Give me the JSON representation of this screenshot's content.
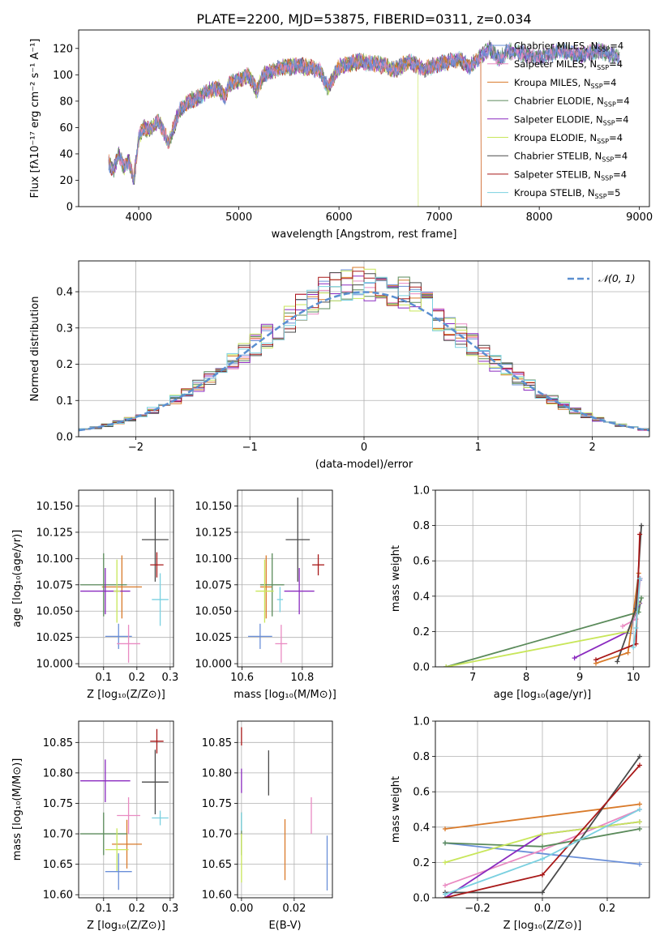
{
  "title": "PLATE=2200, MJD=53875, FIBERID=0311, z=0.034",
  "colors": {
    "Chabrier MILES": "#6a8fd8",
    "Salpeter MILES": "#e98ac2",
    "Kroupa MILES": "#d97a2a",
    "Chabrier ELODIE": "#5a8a5a",
    "Salpeter ELODIE": "#8a2abf",
    "Kroupa ELODIE": "#c8e65a",
    "Chabrier STELIB": "#4a4a4a",
    "Salpeter STELIB": "#a81818",
    "Kroupa STELIB": "#7ad0e0",
    "normal": "#5b8fd0"
  },
  "legend_order": [
    "Chabrier MILES",
    "Salpeter MILES",
    "Kroupa MILES",
    "Chabrier ELODIE",
    "Salpeter ELODIE",
    "Kroupa ELODIE",
    "Chabrier STELIB",
    "Salpeter STELIB",
    "Kroupa STELIB"
  ],
  "chart_data": [
    {
      "type": "line",
      "id": "spectrum",
      "title": "PLATE=2200, MJD=53875, FIBERID=0311, z=0.034",
      "xlabel": "wavelength [Angstrom, rest frame]",
      "ylabel": "Flux [fλ10⁻¹⁷ erg cm⁻² s⁻¹ A⁻¹]",
      "xlim": [
        3400,
        9100
      ],
      "ylim": [
        0,
        134
      ],
      "xticks": [
        4000,
        5000,
        6000,
        7000,
        8000,
        9000
      ],
      "yticks": [
        0,
        20,
        40,
        60,
        80,
        100,
        120
      ],
      "grid": false,
      "legend_position": "upper right",
      "legend": [
        {
          "base": "Chabrier MILES",
          "n": 4
        },
        {
          "base": "Salpeter MILES",
          "n": 4
        },
        {
          "base": "Kroupa MILES",
          "n": 4
        },
        {
          "base": "Chabrier ELODIE",
          "n": 4
        },
        {
          "base": "Salpeter ELODIE",
          "n": 4
        },
        {
          "base": "Kroupa ELODIE",
          "n": 4
        },
        {
          "base": "Chabrier STELIB",
          "n": 4
        },
        {
          "base": "Salpeter STELIB",
          "n": 4
        },
        {
          "base": "Kroupa STELIB",
          "n": 5
        }
      ],
      "legend_sub_prefix": "N",
      "legend_sub": "SSP",
      "spectrum_anchor_points": [
        [
          3700,
          33
        ],
        [
          3750,
          28
        ],
        [
          3800,
          40
        ],
        [
          3850,
          30
        ],
        [
          3900,
          35
        ],
        [
          3950,
          20
        ],
        [
          4000,
          52
        ],
        [
          4050,
          60
        ],
        [
          4100,
          58
        ],
        [
          4200,
          65
        ],
        [
          4300,
          48
        ],
        [
          4400,
          72
        ],
        [
          4500,
          80
        ],
        [
          4600,
          83
        ],
        [
          4700,
          88
        ],
        [
          4800,
          90
        ],
        [
          4860,
          82
        ],
        [
          4900,
          93
        ],
        [
          5000,
          96
        ],
        [
          5100,
          100
        ],
        [
          5175,
          88
        ],
        [
          5250,
          100
        ],
        [
          5400,
          105
        ],
        [
          5600,
          107
        ],
        [
          5800,
          104
        ],
        [
          5890,
          90
        ],
        [
          6000,
          106
        ],
        [
          6200,
          110
        ],
        [
          6400,
          108
        ],
        [
          6563,
          104
        ],
        [
          6700,
          110
        ],
        [
          6850,
          104
        ],
        [
          7000,
          108
        ],
        [
          7200,
          112
        ],
        [
          7300,
          106
        ],
        [
          7500,
          120
        ],
        [
          7600,
          112
        ],
        [
          7700,
          118
        ],
        [
          8000,
          113
        ],
        [
          8200,
          118
        ],
        [
          8400,
          115
        ],
        [
          8600,
          118
        ],
        [
          8800,
          113
        ]
      ],
      "dropouts": [
        {
          "series": "Kroupa ELODIE",
          "from": 6790,
          "to": 9000
        },
        {
          "series": "Salpeter STELIB",
          "from": 7420,
          "to": 9000
        },
        {
          "series": "Kroupa MILES",
          "from": 7420,
          "to": 9000
        }
      ]
    },
    {
      "type": "histogram",
      "id": "residuals",
      "xlabel": "(data-model)/error",
      "ylabel": "Normed distribution",
      "xlim": [
        -2.5,
        2.5
      ],
      "ylim": [
        0,
        0.485
      ],
      "xticks": [
        -2,
        -1,
        0,
        1,
        2
      ],
      "yticks": [
        0.0,
        0.1,
        0.2,
        0.3,
        0.4
      ],
      "grid": true,
      "legend_label": "𝒩(0, 1)",
      "bin_width": 0.1,
      "bin_start": -2.5
    },
    {
      "type": "errorbar",
      "id": "age_vs_Z",
      "xlabel": "Z [log₁₀(Z/Z⊙)]",
      "ylabel": "age  [log₁₀(age/yr)]",
      "xlim": [
        0.025,
        0.31
      ],
      "ylim": [
        9.997,
        10.165
      ],
      "xticks": [
        0.1,
        0.2,
        0.3
      ],
      "yticks": [
        10.0,
        10.025,
        10.05,
        10.075,
        10.1,
        10.125,
        10.15
      ],
      "grid": true,
      "points": [
        {
          "series": "Chabrier MILES",
          "x": 0.145,
          "y": 10.026,
          "xerr": 0.04,
          "yerr": 0.012
        },
        {
          "series": "Salpeter MILES",
          "x": 0.175,
          "y": 10.019,
          "xerr": 0.035,
          "yerr": 0.018
        },
        {
          "series": "Kroupa MILES",
          "x": 0.155,
          "y": 10.073,
          "xerr": 0.06,
          "yerr": 0.03
        },
        {
          "series": "Chabrier ELODIE",
          "x": 0.1,
          "y": 10.075,
          "xerr": 0.07,
          "yerr": 0.03
        },
        {
          "series": "Salpeter ELODIE",
          "x": 0.105,
          "y": 10.069,
          "xerr": 0.075,
          "yerr": 0.022
        },
        {
          "series": "Kroupa ELODIE",
          "x": 0.14,
          "y": 10.069,
          "xerr": 0.01,
          "yerr": 0.03
        },
        {
          "series": "Chabrier STELIB",
          "x": 0.255,
          "y": 10.118,
          "xerr": 0.04,
          "yerr": 0.04
        },
        {
          "series": "Salpeter STELIB",
          "x": 0.26,
          "y": 10.094,
          "xerr": 0.02,
          "yerr": 0.012
        },
        {
          "series": "Kroupa STELIB",
          "x": 0.27,
          "y": 10.061,
          "xerr": 0.025,
          "yerr": 0.025
        }
      ]
    },
    {
      "type": "errorbar",
      "id": "age_vs_mass",
      "xlabel": "mass [log₁₀(M/M⊙)]",
      "ylabel": "",
      "xlim": [
        10.585,
        10.9
      ],
      "ylim": [
        9.997,
        10.165
      ],
      "xticks": [
        10.6,
        10.8
      ],
      "yticks": [
        10.0,
        10.025,
        10.05,
        10.075,
        10.1,
        10.125,
        10.15
      ],
      "grid": true,
      "points": [
        {
          "series": "Chabrier MILES",
          "x": 10.66,
          "y": 10.026,
          "xerr": 0.04,
          "yerr": 0.012
        },
        {
          "series": "Salpeter MILES",
          "x": 10.73,
          "y": 10.019,
          "xerr": 0.02,
          "yerr": 0.018
        },
        {
          "series": "Kroupa MILES",
          "x": 10.68,
          "y": 10.073,
          "xerr": 0.02,
          "yerr": 0.03
        },
        {
          "series": "Chabrier ELODIE",
          "x": 10.7,
          "y": 10.075,
          "xerr": 0.04,
          "yerr": 0.03
        },
        {
          "series": "Salpeter ELODIE",
          "x": 10.79,
          "y": 10.069,
          "xerr": 0.05,
          "yerr": 0.022
        },
        {
          "series": "Kroupa ELODIE",
          "x": 10.675,
          "y": 10.069,
          "xerr": 0.03,
          "yerr": 0.03
        },
        {
          "series": "Chabrier STELIB",
          "x": 10.785,
          "y": 10.118,
          "xerr": 0.04,
          "yerr": 0.04
        },
        {
          "series": "Salpeter STELIB",
          "x": 10.853,
          "y": 10.094,
          "xerr": 0.02,
          "yerr": 0.01
        },
        {
          "series": "Kroupa STELIB",
          "x": 10.726,
          "y": 10.061,
          "xerr": 0.01,
          "yerr": 0.012
        }
      ]
    },
    {
      "type": "line",
      "id": "weight_vs_age",
      "xlabel": "age  [log₁₀(age/yr)]",
      "ylabel": "mass weight",
      "xlim": [
        6.3,
        10.3
      ],
      "ylim": [
        0,
        1.0
      ],
      "xticks": [
        7,
        8,
        9,
        10
      ],
      "yticks": [
        0.0,
        0.2,
        0.4,
        0.6,
        0.8,
        1.0
      ],
      "grid": true,
      "series": [
        {
          "name": "Chabrier MILES",
          "x": [
            9.95,
            10.12
          ],
          "y": [
            0.19,
            0.49
          ]
        },
        {
          "name": "Salpeter MILES",
          "x": [
            9.8,
            10.05,
            10.13
          ],
          "y": [
            0.23,
            0.27,
            0.5
          ]
        },
        {
          "name": "Kroupa MILES",
          "x": [
            9.3,
            9.9,
            10.1
          ],
          "y": [
            0.02,
            0.08,
            0.53
          ]
        },
        {
          "name": "Chabrier ELODIE",
          "x": [
            6.5,
            10.1,
            10.15
          ],
          "y": [
            0.0,
            0.31,
            0.39
          ]
        },
        {
          "name": "Salpeter ELODIE",
          "x": [
            8.9,
            9.9,
            10.12
          ],
          "y": [
            0.05,
            0.2,
            0.36
          ]
        },
        {
          "name": "Kroupa ELODIE",
          "x": [
            6.5,
            9.9,
            10.1
          ],
          "y": [
            0.0,
            0.2,
            0.36
          ]
        },
        {
          "name": "Chabrier STELIB",
          "x": [
            9.7,
            10.05,
            10.15
          ],
          "y": [
            0.03,
            0.33,
            0.8
          ]
        },
        {
          "name": "Salpeter STELIB",
          "x": [
            9.3,
            10.05,
            10.12
          ],
          "y": [
            0.04,
            0.13,
            0.75
          ]
        },
        {
          "name": "Kroupa STELIB",
          "x": [
            10.0,
            10.05,
            10.12
          ],
          "y": [
            0.11,
            0.22,
            0.5
          ]
        }
      ]
    },
    {
      "type": "errorbar",
      "id": "mass_vs_Z",
      "xlabel": "Z [log₁₀(Z/Z⊙)]",
      "ylabel": "mass [log₁₀(M/M⊙)]",
      "xlim": [
        0.025,
        0.31
      ],
      "ylim": [
        10.595,
        10.885
      ],
      "xticks": [
        0.1,
        0.2,
        0.3
      ],
      "yticks": [
        10.6,
        10.65,
        10.7,
        10.75,
        10.8,
        10.85
      ],
      "grid": true,
      "points": [
        {
          "series": "Chabrier MILES",
          "x": 0.145,
          "y": 10.638,
          "xerr": 0.04,
          "yerr": 0.03
        },
        {
          "series": "Salpeter MILES",
          "x": 0.175,
          "y": 10.73,
          "xerr": 0.035,
          "yerr": 0.03
        },
        {
          "series": "Kroupa MILES",
          "x": 0.17,
          "y": 10.683,
          "xerr": 0.045,
          "yerr": 0.04
        },
        {
          "series": "Chabrier ELODIE",
          "x": 0.1,
          "y": 10.7,
          "xerr": 0.07,
          "yerr": 0.035
        },
        {
          "series": "Salpeter ELODIE",
          "x": 0.105,
          "y": 10.787,
          "xerr": 0.075,
          "yerr": 0.035
        },
        {
          "series": "Kroupa ELODIE",
          "x": 0.14,
          "y": 10.674,
          "xerr": 0.035,
          "yerr": 0.035
        },
        {
          "series": "Chabrier STELIB",
          "x": 0.255,
          "y": 10.785,
          "xerr": 0.04,
          "yerr": 0.053
        },
        {
          "series": "Salpeter STELIB",
          "x": 0.26,
          "y": 10.852,
          "xerr": 0.02,
          "yerr": 0.02
        },
        {
          "series": "Kroupa STELIB",
          "x": 0.27,
          "y": 10.726,
          "xerr": 0.025,
          "yerr": 0.012
        }
      ]
    },
    {
      "type": "errorbar",
      "id": "mass_vs_ebv",
      "xlabel": "E(B-V)",
      "ylabel": "",
      "xlim": [
        -0.0015,
        0.0345
      ],
      "ylim": [
        10.595,
        10.885
      ],
      "xticks": [
        0.0,
        0.02
      ],
      "yticks": [
        10.6,
        10.65,
        10.7,
        10.75,
        10.8,
        10.85
      ],
      "grid": true,
      "points": [
        {
          "series": "Chabrier MILES",
          "x": 0.0325,
          "y": 10.652,
          "xerr": 0,
          "yerr": 0.045
        },
        {
          "series": "Salpeter MILES",
          "x": 0.0265,
          "y": 10.73,
          "xerr": 0,
          "yerr": 0.03
        },
        {
          "series": "Kroupa MILES",
          "x": 0.0165,
          "y": 10.674,
          "xerr": 0,
          "yerr": 0.05
        },
        {
          "series": "Chabrier ELODIE",
          "x": 0.0,
          "y": 10.7,
          "xerr": 0,
          "yerr": 0.035
        },
        {
          "series": "Salpeter ELODIE",
          "x": 0.0,
          "y": 10.787,
          "xerr": 0,
          "yerr": 0.02
        },
        {
          "series": "Kroupa ELODIE",
          "x": 0.0,
          "y": 10.66,
          "xerr": 0,
          "yerr": 0.04
        },
        {
          "series": "Chabrier STELIB",
          "x": 0.0103,
          "y": 10.8,
          "xerr": 0,
          "yerr": 0.037
        },
        {
          "series": "Salpeter STELIB",
          "x": 0.0,
          "y": 10.86,
          "xerr": 0,
          "yerr": 0.015
        },
        {
          "series": "Kroupa STELIB",
          "x": 0.0,
          "y": 10.72,
          "xerr": 0,
          "yerr": 0.015
        }
      ]
    },
    {
      "type": "line",
      "id": "weight_vs_Z",
      "xlabel": "Z [log₁₀(Z/Z⊙)]",
      "ylabel": "mass weight",
      "xlim": [
        -0.33,
        0.33
      ],
      "ylim": [
        0,
        1.0
      ],
      "xticks": [
        -0.2,
        0.0,
        0.2
      ],
      "yticks": [
        0.0,
        0.2,
        0.4,
        0.6,
        0.8,
        1.0
      ],
      "grid": true,
      "series": [
        {
          "name": "Chabrier MILES",
          "x": [
            -0.3,
            0.3
          ],
          "y": [
            0.31,
            0.19
          ]
        },
        {
          "name": "Salpeter MILES",
          "x": [
            -0.3,
            0.0,
            0.3
          ],
          "y": [
            0.07,
            0.27,
            0.5
          ]
        },
        {
          "name": "Kroupa MILES",
          "x": [
            -0.3,
            0.3
          ],
          "y": [
            0.39,
            0.53
          ]
        },
        {
          "name": "Chabrier ELODIE",
          "x": [
            -0.3,
            0.0,
            0.3
          ],
          "y": [
            0.31,
            0.29,
            0.39
          ]
        },
        {
          "name": "Salpeter ELODIE",
          "x": [
            -0.3,
            0.0,
            0.3
          ],
          "y": [
            0.0,
            0.36,
            0.43
          ]
        },
        {
          "name": "Kroupa ELODIE",
          "x": [
            -0.3,
            0.0,
            0.3
          ],
          "y": [
            0.2,
            0.36,
            0.43
          ]
        },
        {
          "name": "Chabrier STELIB",
          "x": [
            -0.3,
            0.0,
            0.3
          ],
          "y": [
            0.03,
            0.03,
            0.8
          ]
        },
        {
          "name": "Salpeter STELIB",
          "x": [
            -0.3,
            0.0,
            0.3
          ],
          "y": [
            0.0,
            0.13,
            0.75
          ]
        },
        {
          "name": "Kroupa STELIB",
          "x": [
            -0.3,
            0.0,
            0.3
          ],
          "y": [
            0.02,
            0.22,
            0.5
          ]
        }
      ]
    }
  ]
}
